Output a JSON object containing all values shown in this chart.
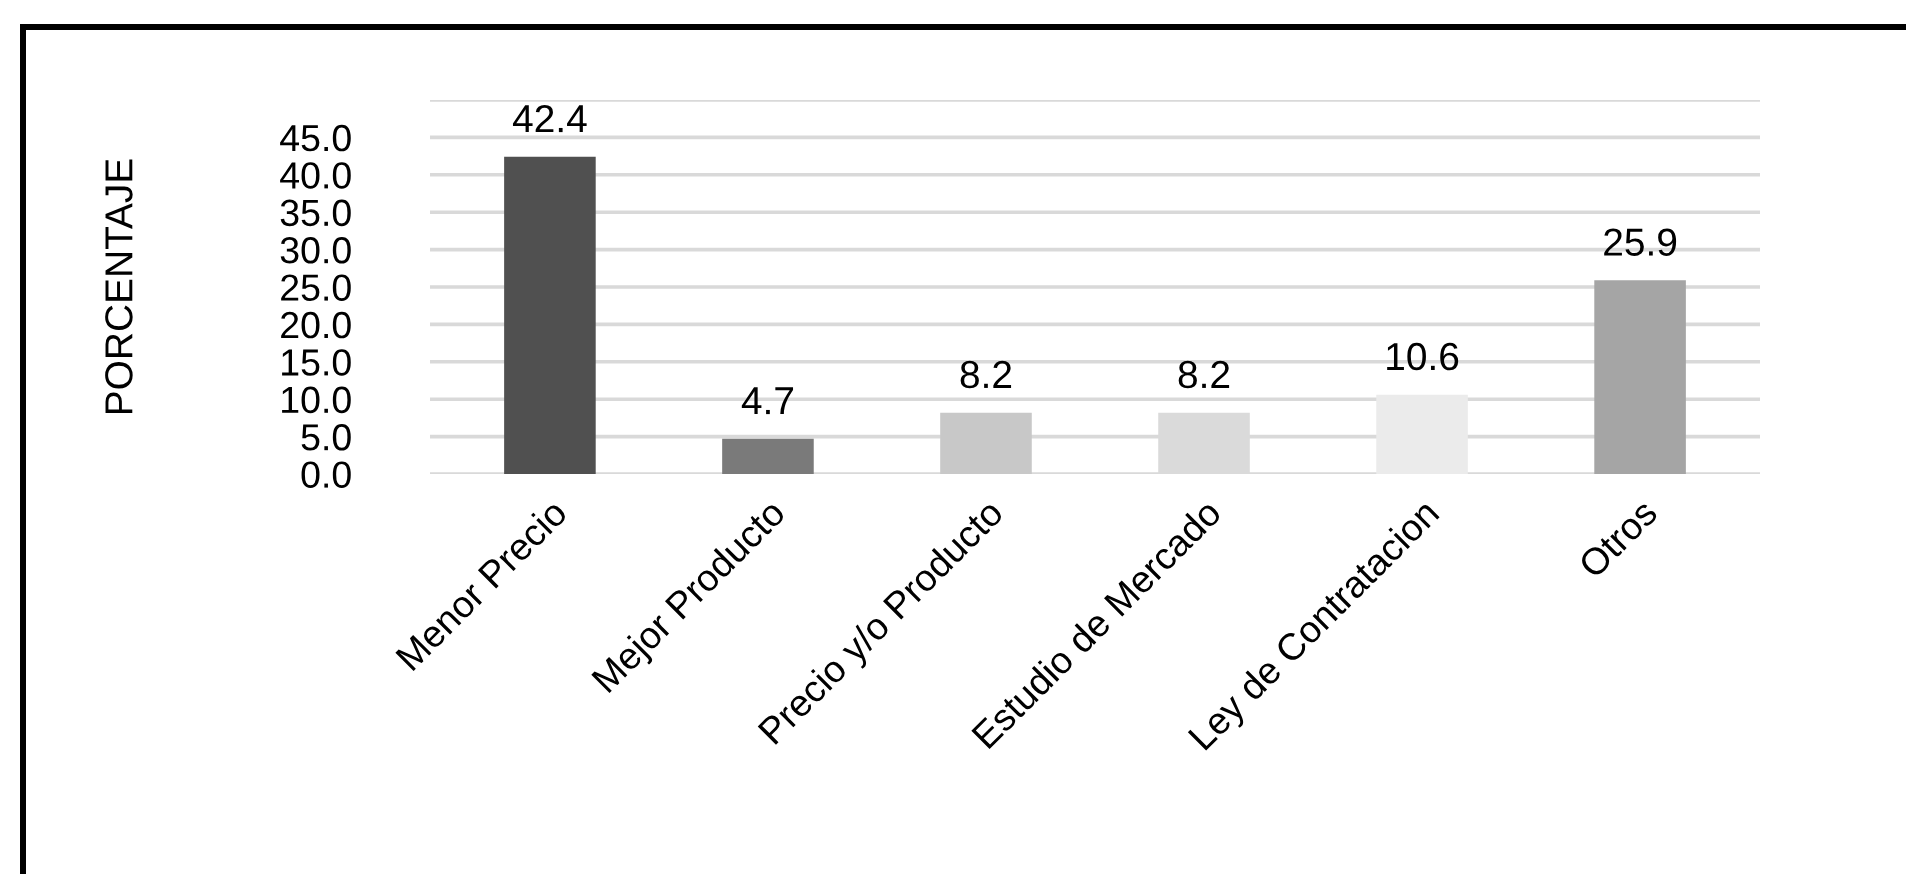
{
  "chart_data": {
    "type": "bar",
    "ylabel": "PORCENTAJE",
    "categories": [
      "Menor Precio",
      "Mejor Producto",
      "Precio y/o Producto",
      "Estudio de Mercado",
      "Ley de Contratacion",
      "Otros"
    ],
    "values": [
      42.4,
      4.7,
      8.2,
      8.2,
      10.6,
      25.9
    ],
    "colors": [
      "#505050",
      "#7a7a7a",
      "#c8c8c8",
      "#dadada",
      "#ebebeb",
      "#a5a5a5"
    ],
    "data_labels": true,
    "ylim": [
      0,
      50
    ],
    "yticks": [
      {
        "value": 0,
        "label": "0.0"
      },
      {
        "value": 5,
        "label": "5.0"
      },
      {
        "value": 10,
        "label": "10.0"
      },
      {
        "value": 15,
        "label": "15.0"
      },
      {
        "value": 20,
        "label": "20.0"
      },
      {
        "value": 25,
        "label": "25.0"
      },
      {
        "value": 30,
        "label": "30.0"
      },
      {
        "value": 35,
        "label": "35.0"
      },
      {
        "value": 40,
        "label": "40.0"
      },
      {
        "value": 45,
        "label": "45.0"
      },
      {
        "value": 50,
        "label": null
      }
    ],
    "grid": "y",
    "legend": false
  }
}
